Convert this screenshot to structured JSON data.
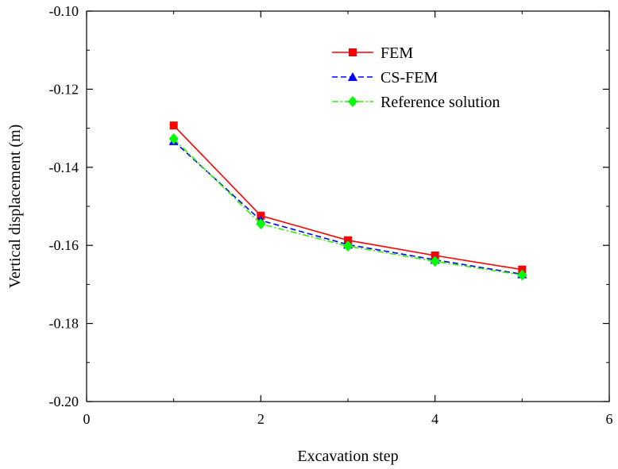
{
  "chart_data": {
    "type": "line",
    "title": "",
    "xlabel": "Excavation step",
    "ylabel": "Vertical displacement (m)",
    "xlim": [
      0,
      6
    ],
    "ylim": [
      -0.2,
      -0.1
    ],
    "xticks": [
      0,
      2,
      4,
      6
    ],
    "xtick_labels": [
      "0",
      "2",
      "4",
      "6"
    ],
    "yticks": [
      -0.2,
      -0.18,
      -0.16,
      -0.14,
      -0.12,
      -0.1
    ],
    "ytick_labels": [
      "-0.20",
      "-0.18",
      "-0.16",
      "-0.14",
      "-0.12",
      "-0.10"
    ],
    "grid": false,
    "legend_position": "top-right",
    "series": [
      {
        "name": "FEM",
        "color": "#ff0000",
        "line_style": "solid",
        "marker": "square",
        "x": [
          1,
          2,
          3,
          4,
          5
        ],
        "y": [
          -0.1293,
          -0.1524,
          -0.1587,
          -0.1626,
          -0.1662
        ]
      },
      {
        "name": "CS-FEM",
        "color": "#0000ff",
        "line_style": "dashed",
        "marker": "triangle",
        "x": [
          1,
          2,
          3,
          4,
          5
        ],
        "y": [
          -0.1333,
          -0.1536,
          -0.1598,
          -0.1637,
          -0.1674
        ]
      },
      {
        "name": "Reference solution",
        "color": "#33ee00",
        "marker_color": "#00ff00",
        "line_style": "dashdot",
        "marker": "diamond",
        "x": [
          1,
          2,
          3,
          4,
          5
        ],
        "y": [
          -0.1327,
          -0.1545,
          -0.1602,
          -0.1641,
          -0.1676
        ]
      }
    ]
  }
}
